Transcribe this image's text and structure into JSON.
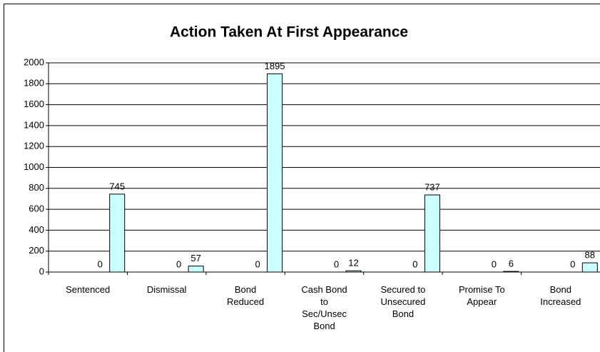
{
  "chart_data": {
    "type": "bar",
    "title": "Action Taken At First Appearance",
    "categories": [
      "Sentenced",
      "Dismissal",
      "Bond Reduced",
      "Cash Bond to Sec/Unsec Bond",
      "Secured to Unsecured Bond",
      "Promise To Appear",
      "Bond Increased"
    ],
    "series": [
      {
        "color": "#ccffff",
        "values": [
          0,
          0,
          0,
          0,
          0,
          0,
          0
        ]
      },
      {
        "color": "#ccffff",
        "values": [
          745,
          57,
          1895,
          12,
          737,
          6,
          88
        ]
      }
    ],
    "ylim": [
      0,
      2000
    ],
    "yticks": [
      0,
      200,
      400,
      600,
      800,
      1000,
      1200,
      1400,
      1600,
      1800,
      2000
    ],
    "grid": true
  }
}
